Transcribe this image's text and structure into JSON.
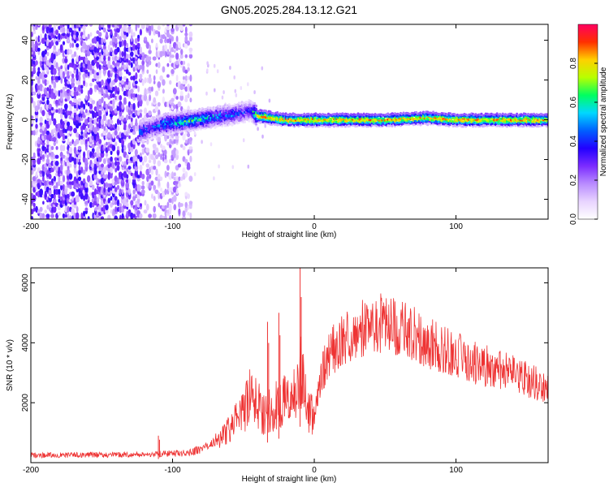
{
  "chart_data": [
    {
      "type": "heatmap",
      "title": "GN05.2025.284.13.12.G21",
      "xlabel": "Height of straight line (km)",
      "ylabel": "Frequency (Hz)",
      "xlim": [
        -200,
        165
      ],
      "ylim": [
        -50,
        48
      ],
      "xticks": [
        -200,
        -100,
        0,
        100
      ],
      "xtick_labels": [
        "-200",
        "-100",
        "0",
        "100"
      ],
      "yticks": [
        -40,
        -20,
        0,
        20,
        40
      ],
      "ytick_labels": [
        "-40",
        "-20",
        "0",
        "20",
        "40"
      ],
      "colorbar": {
        "label": "Normalized spectral amplitude",
        "range": [
          0,
          1
        ],
        "ticks": [
          0,
          0.2,
          0.4,
          0.6,
          0.8
        ],
        "tick_labels": [
          "0.0",
          "0.2",
          "0.4",
          "0.6",
          "0.8"
        ],
        "colormap": [
          "#ffffff",
          "#e8d4ff",
          "#b98cff",
          "#7b2cff",
          "#2200ff",
          "#0060ff",
          "#00d8ff",
          "#00ff60",
          "#b8ff00",
          "#ffd000",
          "#ff3000",
          "#ff0060"
        ]
      },
      "noise_region": {
        "x_from": -200,
        "x_to": -88,
        "dense_to": -123
      },
      "signal_ridge": {
        "x": [
          -123,
          -115,
          -105,
          -95,
          -85,
          -75,
          -65,
          -55,
          -45,
          -40,
          -30,
          -20,
          -10,
          0,
          20,
          50,
          80,
          100,
          130,
          165
        ],
        "freq_hz": [
          -6,
          -4,
          -2,
          -1,
          0,
          1,
          2,
          3,
          5,
          2,
          1,
          0,
          0,
          0,
          0,
          0,
          1,
          0,
          0,
          0
        ],
        "peak_amplitude": [
          0.55,
          0.45,
          0.6,
          0.65,
          0.65,
          0.6,
          0.55,
          0.5,
          0.4,
          0.95,
          0.95,
          0.95,
          0.95,
          0.95,
          0.95,
          0.95,
          0.9,
          0.95,
          0.95,
          0.95
        ]
      }
    },
    {
      "type": "line",
      "xlabel": "Height of straight line (km)",
      "ylabel": "SNR (10 * v/v)",
      "xlim": [
        -200,
        165
      ],
      "ylim": [
        0,
        6500
      ],
      "xticks": [
        -200,
        -100,
        0,
        100
      ],
      "xtick_labels": [
        "-200",
        "-100",
        "0",
        "100"
      ],
      "yticks": [
        2000,
        4000,
        6000
      ],
      "ytick_labels": [
        "2000",
        "4000",
        "6000"
      ],
      "series": [
        {
          "name": "SNR",
          "color": "#ee3333",
          "x": [
            -200,
            -180,
            -160,
            -140,
            -120,
            -110,
            -100,
            -90,
            -80,
            -70,
            -60,
            -50,
            -45,
            -40,
            -35,
            -30,
            -25,
            -20,
            -15,
            -12,
            -10,
            -8,
            -5,
            0,
            5,
            10,
            20,
            30,
            40,
            50,
            60,
            70,
            80,
            90,
            100,
            110,
            120,
            130,
            140,
            150,
            165
          ],
          "y": [
            250,
            250,
            260,
            260,
            270,
            300,
            300,
            320,
            450,
            700,
            1100,
            1700,
            2200,
            2000,
            1600,
            1800,
            2000,
            2100,
            2200,
            2500,
            3000,
            2800,
            1900,
            1500,
            2900,
            3600,
            4100,
            4400,
            4600,
            4650,
            4500,
            4300,
            4000,
            3800,
            3600,
            3400,
            3250,
            3100,
            2950,
            2800,
            2450
          ]
        }
      ],
      "spikes": [
        {
          "x": -110,
          "y": 900
        },
        {
          "x": -33,
          "y": 4700
        },
        {
          "x": -25,
          "y": 5000
        },
        {
          "x": -10,
          "y": 6500
        }
      ]
    }
  ]
}
